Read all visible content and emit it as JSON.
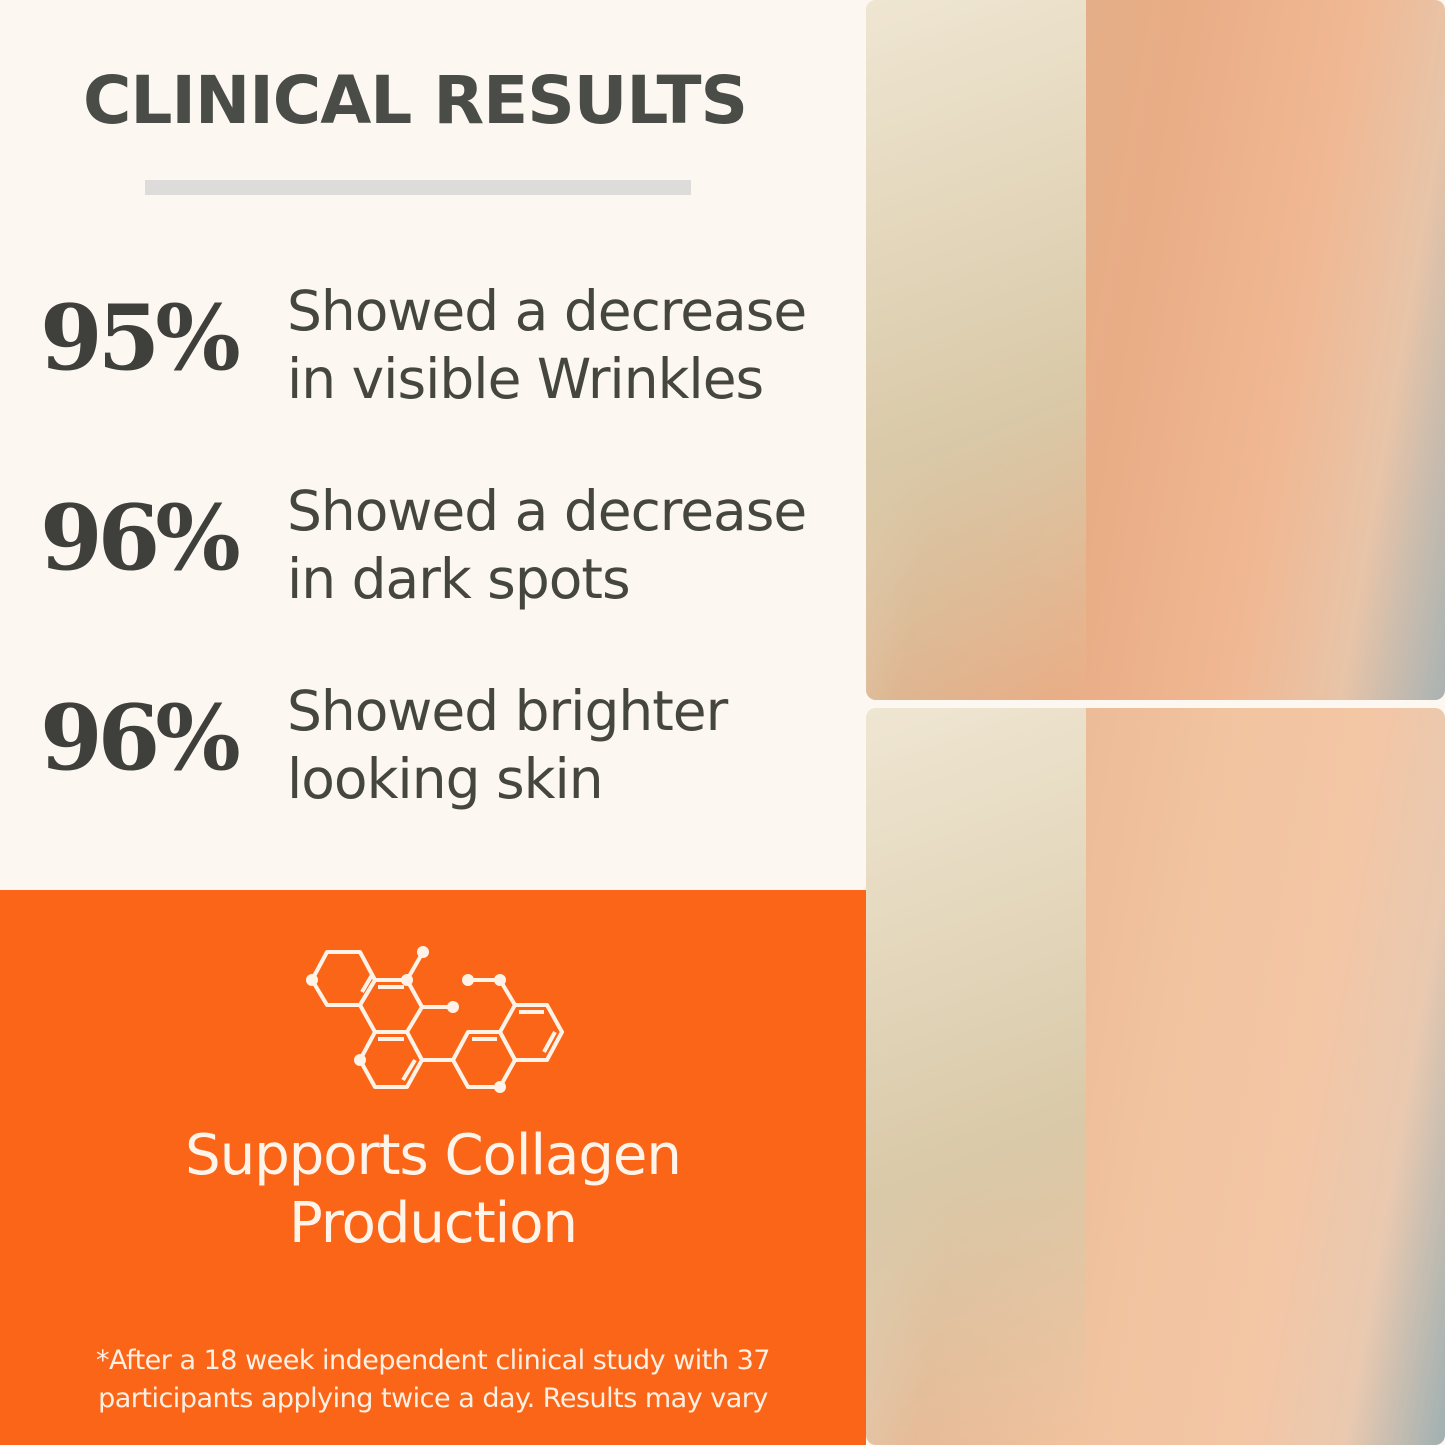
{
  "title": "CLINICAL RESULTS",
  "stats": [
    {
      "value": "95%",
      "line1": "Showed a decrease",
      "line2": "in visible Wrinkles"
    },
    {
      "value": "96%",
      "line1": "Showed a decrease",
      "line2": "in dark spots"
    },
    {
      "value": "96%",
      "line1": "Showed brighter",
      "line2": "looking skin"
    }
  ],
  "feature": {
    "icon": "molecule-icon",
    "line1": "Supports Collagen",
    "line2": "Production"
  },
  "footnote": {
    "line1": "*After a 18 week independent clinical study with 37",
    "line2": "participants applying twice a day. Results may vary"
  },
  "colors": {
    "accent": "#fb6518",
    "background": "#fcf7f0",
    "text": "#45463f"
  }
}
